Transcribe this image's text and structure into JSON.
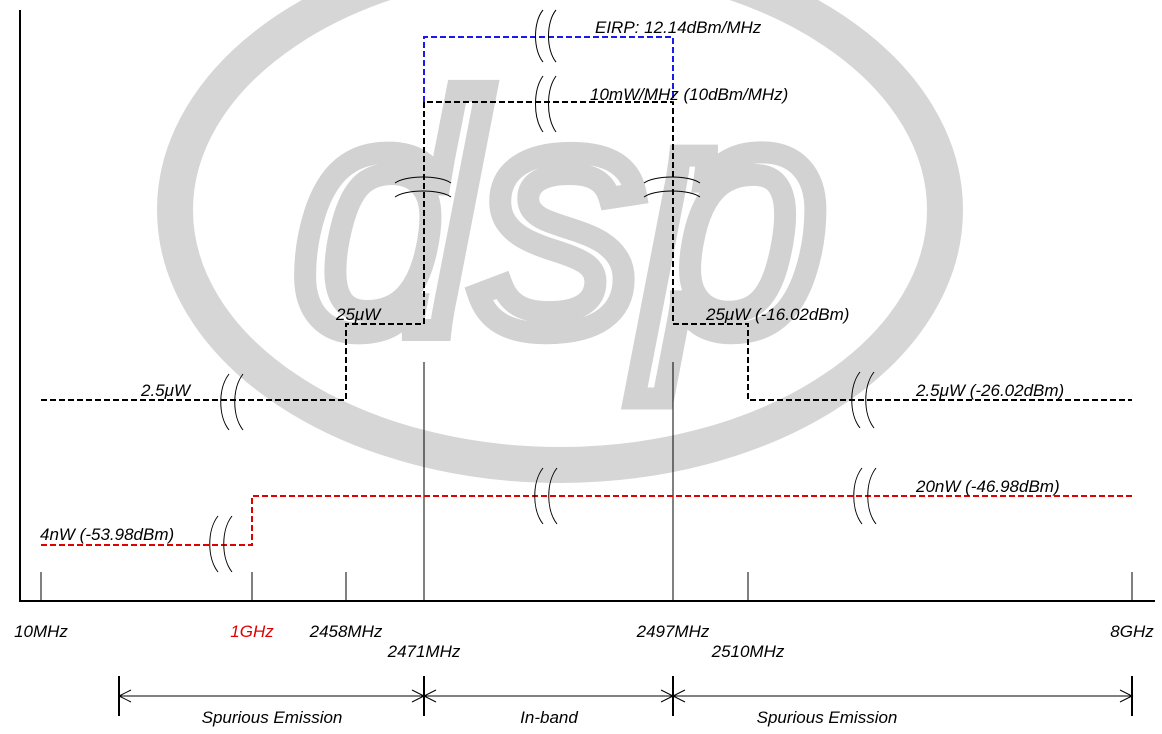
{
  "chart_data": {
    "type": "diagram",
    "title": "",
    "colors": {
      "limit_black": "#000000",
      "limit_red": "#e00000",
      "limit_blue": "#1a1aee",
      "watermark": "#cfcfcf",
      "red_label": "#e00000"
    },
    "watermark_text": "dsp",
    "x_ticks": [
      {
        "label": "10MHz"
      },
      {
        "label": "1GHz",
        "highlight": true
      },
      {
        "label": "2458MHz"
      },
      {
        "label": "2471MHz"
      },
      {
        "label": "2497MHz"
      },
      {
        "label": "2510MHz"
      },
      {
        "label": "8GHz"
      }
    ],
    "levels": [
      {
        "label": "EIRP: 12.14dBm/MHz",
        "color": "blue"
      },
      {
        "label": "10mW/MHz (10dBm/MHz)",
        "color": "black"
      },
      {
        "label": "25μW",
        "color": "black"
      },
      {
        "label": "25μW (-16.02dBm)",
        "color": "black"
      },
      {
        "label": "2.5μW",
        "color": "black"
      },
      {
        "label": "2.5μW (-26.02dBm)",
        "color": "black"
      },
      {
        "label": "20nW (-46.98dBm)",
        "color": "red"
      },
      {
        "label": "4nW (-53.98dBm)",
        "color": "red"
      }
    ],
    "regions": [
      {
        "label": "Spurious Emission"
      },
      {
        "label": "In-band"
      },
      {
        "label": "Spurious Emission"
      }
    ]
  }
}
